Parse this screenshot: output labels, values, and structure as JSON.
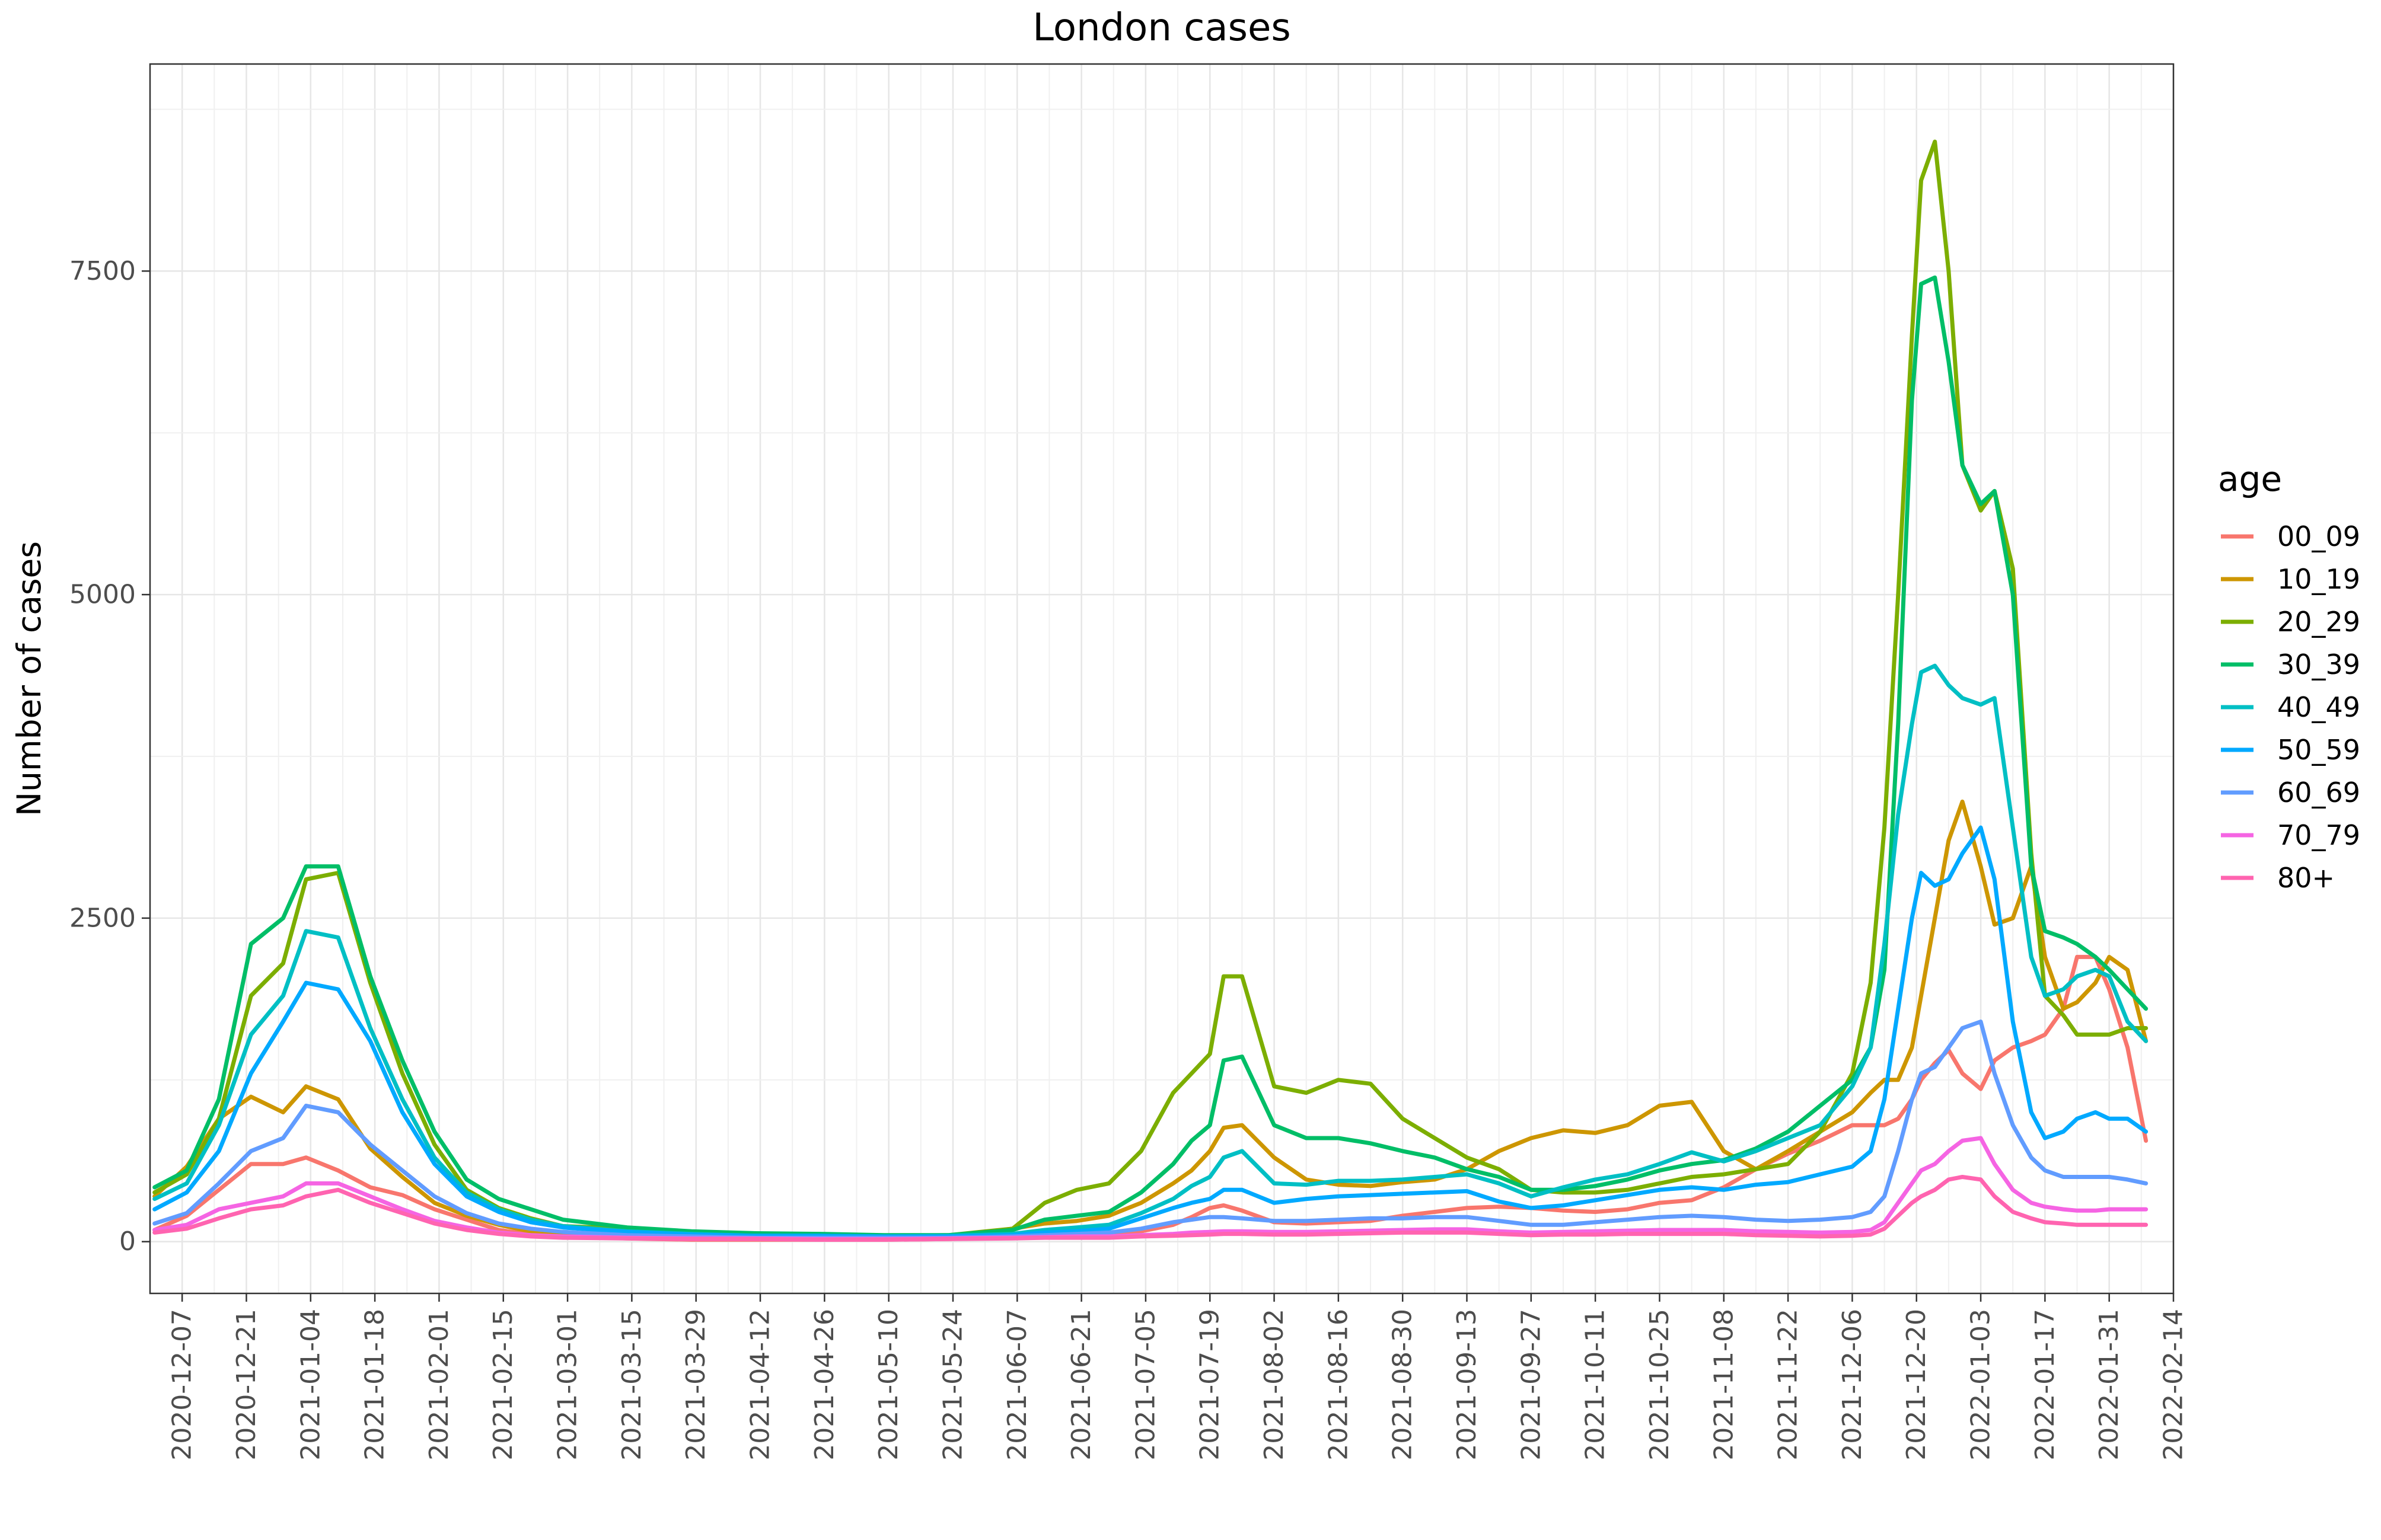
{
  "chart_data": {
    "type": "line",
    "title": "London cases",
    "xlabel": "",
    "ylabel": "Number of cases",
    "x_type": "date",
    "xlim": [
      "2020-11-30",
      "2022-02-14"
    ],
    "ylim": [
      -400,
      9100
    ],
    "grid": true,
    "legend_position": "right",
    "legend_title": "age",
    "x_ticks": [
      "2020-12-07",
      "2020-12-21",
      "2021-01-04",
      "2021-01-18",
      "2021-02-01",
      "2021-02-15",
      "2021-03-01",
      "2021-03-15",
      "2021-03-29",
      "2021-04-12",
      "2021-04-26",
      "2021-05-10",
      "2021-05-24",
      "2021-06-07",
      "2021-06-21",
      "2021-07-05",
      "2021-07-19",
      "2021-08-02",
      "2021-08-16",
      "2021-08-30",
      "2021-09-13",
      "2021-09-27",
      "2021-10-11",
      "2021-10-25",
      "2021-11-08",
      "2021-11-22",
      "2021-12-06",
      "2021-12-20",
      "2022-01-03",
      "2022-01-17",
      "2022-01-31",
      "2022-02-14"
    ],
    "y_ticks": [
      0,
      2500,
      5000,
      7500
    ],
    "y_tick_labels": [
      "0",
      "2500",
      "5000",
      "7500"
    ],
    "x": [
      "2020-12-01",
      "2020-12-08",
      "2020-12-15",
      "2020-12-22",
      "2020-12-29",
      "2021-01-03",
      "2021-01-10",
      "2021-01-17",
      "2021-01-24",
      "2021-01-31",
      "2021-02-07",
      "2021-02-14",
      "2021-02-21",
      "2021-02-28",
      "2021-03-14",
      "2021-03-28",
      "2021-04-11",
      "2021-04-25",
      "2021-05-09",
      "2021-05-23",
      "2021-06-06",
      "2021-06-13",
      "2021-06-20",
      "2021-06-27",
      "2021-07-04",
      "2021-07-11",
      "2021-07-15",
      "2021-07-19",
      "2021-07-22",
      "2021-07-26",
      "2021-08-02",
      "2021-08-09",
      "2021-08-16",
      "2021-08-23",
      "2021-08-30",
      "2021-09-06",
      "2021-09-13",
      "2021-09-20",
      "2021-09-27",
      "2021-10-04",
      "2021-10-11",
      "2021-10-18",
      "2021-10-25",
      "2021-11-01",
      "2021-11-08",
      "2021-11-15",
      "2021-11-22",
      "2021-11-29",
      "2021-12-06",
      "2021-12-10",
      "2021-12-13",
      "2021-12-16",
      "2021-12-19",
      "2021-12-21",
      "2021-12-24",
      "2021-12-27",
      "2021-12-30",
      "2022-01-03",
      "2022-01-06",
      "2022-01-10",
      "2022-01-14",
      "2022-01-17",
      "2022-01-21",
      "2022-01-24",
      "2022-01-28",
      "2022-01-31",
      "2022-02-04",
      "2022-02-08"
    ],
    "series": [
      {
        "name": "00_09",
        "color": "#F8766D",
        "values": [
          90,
          200,
          400,
          600,
          600,
          650,
          550,
          420,
          360,
          250,
          170,
          90,
          55,
          40,
          25,
          15,
          15,
          15,
          15,
          20,
          30,
          35,
          40,
          60,
          80,
          130,
          190,
          260,
          280,
          240,
          150,
          140,
          150,
          160,
          200,
          230,
          260,
          270,
          260,
          240,
          230,
          250,
          300,
          320,
          420,
          560,
          680,
          780,
          900,
          900,
          900,
          950,
          1100,
          1250,
          1380,
          1480,
          1300,
          1180,
          1400,
          1500,
          1550,
          1600,
          1800,
          2200,
          2200,
          1950,
          1500,
          780
        ]
      },
      {
        "name": "10_19",
        "color": "#CD9600",
        "values": [
          350,
          580,
          950,
          1120,
          1000,
          1200,
          1100,
          720,
          500,
          300,
          200,
          130,
          80,
          70,
          55,
          55,
          40,
          40,
          35,
          40,
          100,
          140,
          160,
          200,
          300,
          450,
          550,
          700,
          880,
          900,
          650,
          480,
          440,
          430,
          460,
          480,
          560,
          700,
          800,
          860,
          840,
          900,
          1050,
          1080,
          700,
          560,
          700,
          850,
          1000,
          1150,
          1250,
          1250,
          1500,
          1900,
          2500,
          3100,
          3400,
          2900,
          2450,
          2500,
          2900,
          2200,
          1800,
          1850,
          2000,
          2200,
          2100,
          1550
        ]
      },
      {
        "name": "20_29",
        "color": "#7CAE00",
        "values": [
          380,
          520,
          950,
          1900,
          2150,
          2800,
          2850,
          2000,
          1300,
          750,
          400,
          260,
          180,
          120,
          100,
          70,
          55,
          50,
          45,
          50,
          100,
          300,
          400,
          450,
          700,
          1150,
          1300,
          1450,
          2050,
          2050,
          1200,
          1150,
          1250,
          1220,
          950,
          800,
          650,
          560,
          400,
          380,
          380,
          400,
          450,
          500,
          520,
          560,
          600,
          850,
          1300,
          2000,
          3200,
          5000,
          7000,
          8200,
          8500,
          7500,
          6000,
          5650,
          5800,
          5200,
          3000,
          1900,
          1750,
          1600,
          1600,
          1600,
          1650,
          1650
        ]
      },
      {
        "name": "30_39",
        "color": "#00BE67",
        "values": [
          420,
          550,
          1100,
          2300,
          2500,
          2900,
          2900,
          2050,
          1400,
          850,
          480,
          330,
          250,
          170,
          110,
          80,
          65,
          60,
          50,
          50,
          90,
          170,
          200,
          230,
          380,
          600,
          780,
          900,
          1400,
          1430,
          900,
          800,
          800,
          760,
          700,
          650,
          560,
          500,
          400,
          400,
          430,
          480,
          550,
          600,
          630,
          720,
          850,
          1050,
          1250,
          1500,
          2100,
          4000,
          6500,
          7400,
          7450,
          6800,
          6000,
          5700,
          5800,
          5000,
          2900,
          2400,
          2350,
          2300,
          2200,
          2100,
          1950,
          1800
        ]
      },
      {
        "name": "40_49",
        "color": "#00BFC4",
        "values": [
          330,
          450,
          900,
          1600,
          1900,
          2400,
          2350,
          1650,
          1100,
          650,
          380,
          250,
          170,
          120,
          80,
          60,
          45,
          45,
          40,
          45,
          60,
          90,
          110,
          130,
          220,
          330,
          430,
          500,
          650,
          700,
          450,
          440,
          470,
          470,
          480,
          500,
          520,
          450,
          350,
          420,
          480,
          520,
          600,
          690,
          620,
          700,
          800,
          900,
          1200,
          1500,
          2300,
          3300,
          4000,
          4400,
          4450,
          4300,
          4200,
          4150,
          4200,
          3200,
          2200,
          1900,
          1950,
          2050,
          2100,
          2050,
          1700,
          1550
        ]
      },
      {
        "name": "50_59",
        "color": "#00A9FF",
        "values": [
          250,
          380,
          700,
          1300,
          1700,
          2000,
          1950,
          1550,
          1000,
          600,
          350,
          230,
          150,
          110,
          75,
          55,
          45,
          45,
          40,
          40,
          50,
          70,
          80,
          100,
          180,
          260,
          300,
          330,
          400,
          400,
          300,
          330,
          350,
          360,
          370,
          380,
          390,
          310,
          260,
          280,
          320,
          360,
          400,
          420,
          400,
          440,
          460,
          520,
          580,
          700,
          1100,
          1800,
          2500,
          2850,
          2750,
          2800,
          3000,
          3200,
          2800,
          1700,
          1000,
          800,
          850,
          950,
          1000,
          950,
          950,
          850
        ]
      },
      {
        "name": "60_69",
        "color": "#619CFF",
        "values": [
          140,
          220,
          450,
          700,
          800,
          1050,
          1000,
          750,
          550,
          350,
          220,
          140,
          100,
          75,
          50,
          40,
          30,
          30,
          30,
          30,
          40,
          50,
          60,
          70,
          100,
          150,
          170,
          190,
          190,
          180,
          160,
          160,
          170,
          180,
          180,
          190,
          190,
          160,
          130,
          130,
          150,
          170,
          190,
          200,
          190,
          170,
          160,
          170,
          190,
          230,
          350,
          700,
          1100,
          1300,
          1350,
          1500,
          1650,
          1700,
          1300,
          900,
          650,
          550,
          500,
          500,
          500,
          500,
          480,
          450
        ]
      },
      {
        "name": "70_79",
        "color": "#F564E3",
        "values": [
          90,
          130,
          250,
          300,
          350,
          450,
          450,
          350,
          250,
          160,
          110,
          70,
          50,
          40,
          30,
          25,
          25,
          20,
          20,
          25,
          30,
          35,
          40,
          40,
          50,
          60,
          70,
          75,
          80,
          80,
          75,
          75,
          80,
          85,
          90,
          95,
          95,
          80,
          70,
          75,
          80,
          85,
          90,
          90,
          90,
          80,
          75,
          70,
          75,
          90,
          150,
          300,
          450,
          550,
          600,
          700,
          780,
          800,
          600,
          400,
          300,
          270,
          250,
          240,
          240,
          250,
          250,
          250
        ]
      },
      {
        "name": "80+",
        "color": "#FF64B0",
        "values": [
          70,
          100,
          180,
          250,
          280,
          350,
          400,
          300,
          220,
          140,
          90,
          60,
          40,
          30,
          25,
          20,
          20,
          15,
          15,
          20,
          25,
          30,
          30,
          30,
          40,
          45,
          50,
          55,
          60,
          60,
          55,
          55,
          60,
          65,
          70,
          70,
          70,
          60,
          50,
          55,
          55,
          60,
          60,
          60,
          60,
          50,
          45,
          40,
          45,
          55,
          100,
          200,
          300,
          350,
          400,
          480,
          500,
          480,
          350,
          230,
          180,
          150,
          140,
          130,
          130,
          130,
          130,
          130
        ]
      }
    ]
  }
}
